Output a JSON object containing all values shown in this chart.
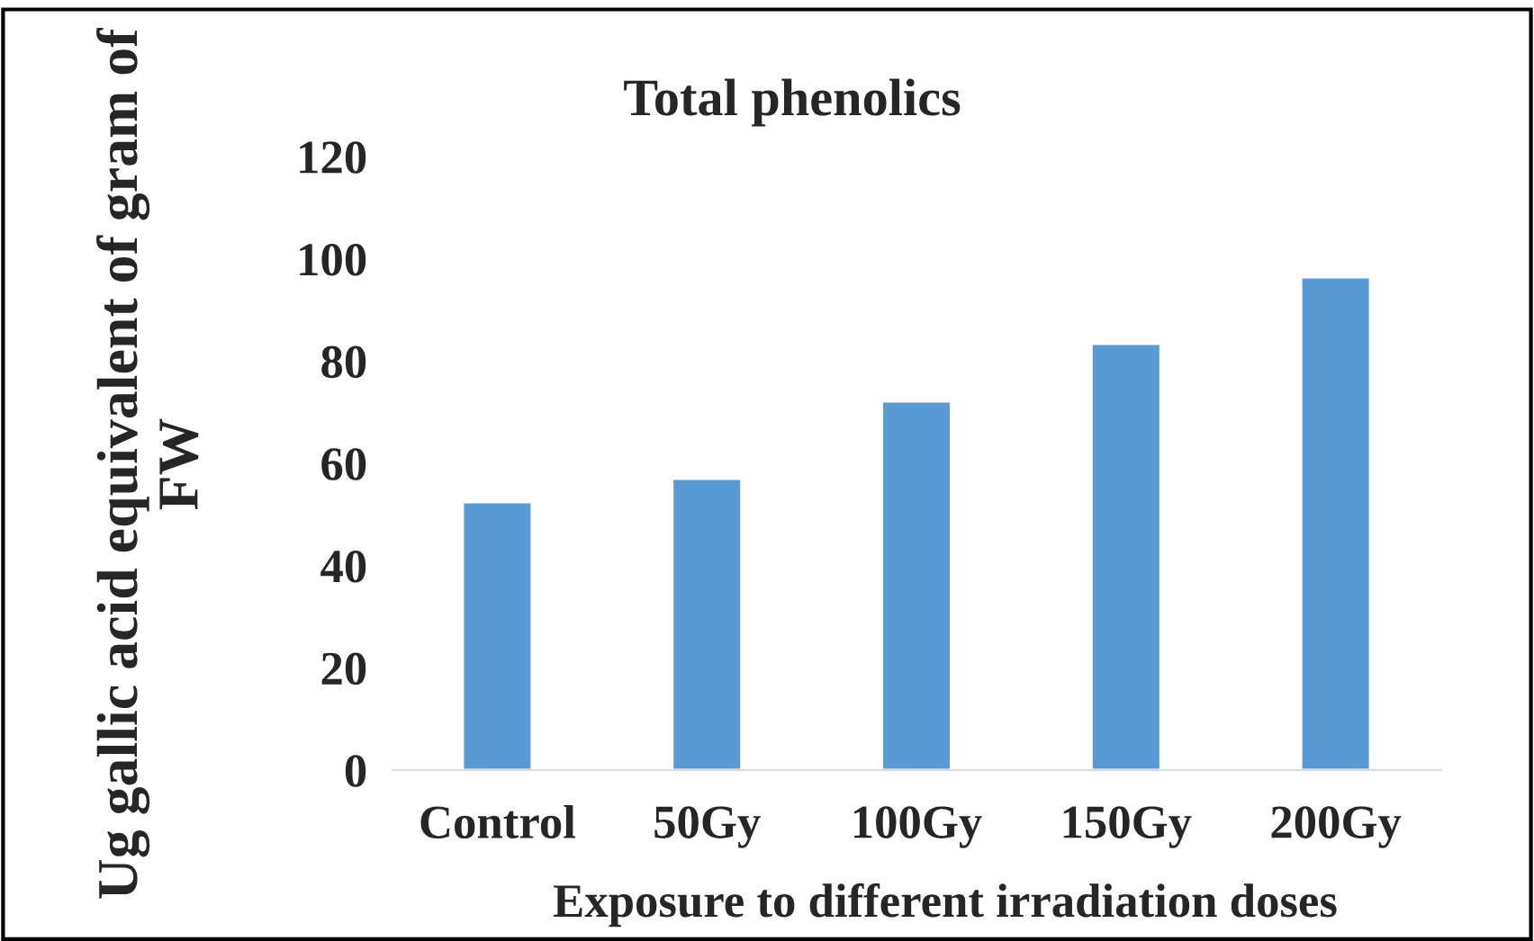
{
  "chart_data": {
    "type": "bar",
    "title": "Total phenolics",
    "xlabel": "Exposure to different irradiation doses",
    "ylabel": "Ug gallic acid equivalent of gram of FW",
    "categories": [
      "Control",
      "50Gy",
      "100Gy",
      "150Gy",
      "200Gy"
    ],
    "values": [
      52.4,
      57.0,
      72.1,
      83.4,
      96.4
    ],
    "color": "#5b9bd5",
    "ylim": [
      0,
      120
    ],
    "yticks": [
      0,
      20,
      40,
      60,
      80,
      100,
      120
    ],
    "grid": false,
    "legend": false
  }
}
